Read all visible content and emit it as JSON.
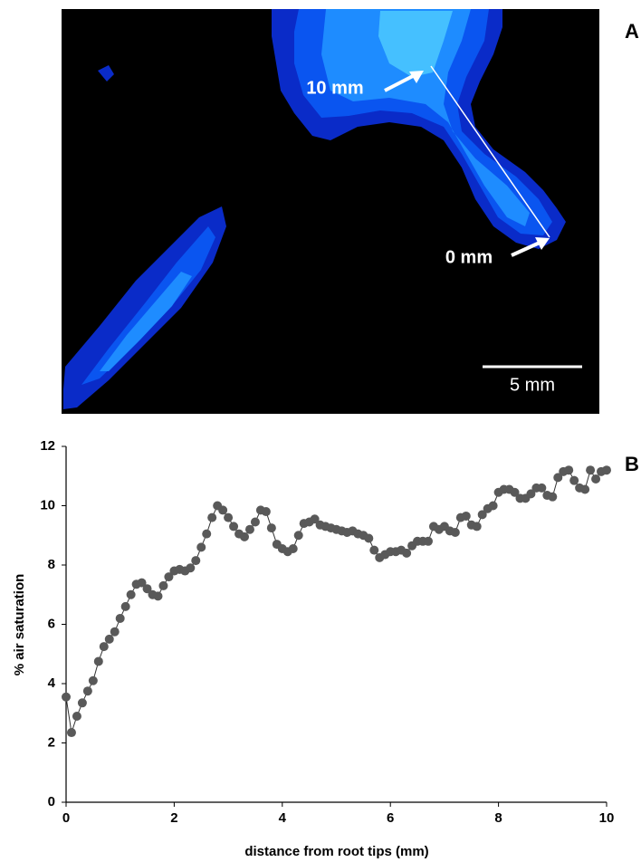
{
  "panel_a": {
    "label": "A",
    "upper_marker": "10 mm",
    "lower_marker": "0 mm",
    "scale_bar": "5 mm"
  },
  "chart_data": {
    "type": "line",
    "panel_label": "B",
    "xlabel": "distance from root tips (mm)",
    "ylabel": "% air saturation",
    "x": [
      0,
      0.1,
      0.2,
      0.3,
      0.4,
      0.5,
      0.6,
      0.7,
      0.8,
      0.9,
      1,
      1.1,
      1.2,
      1.3,
      1.4,
      1.5,
      1.6,
      1.7,
      1.8,
      1.9,
      2,
      2.1,
      2.2,
      2.3,
      2.4,
      2.5,
      2.6,
      2.7,
      2.8,
      2.9,
      3,
      3.1,
      3.2,
      3.3,
      3.4,
      3.5,
      3.6,
      3.7,
      3.8,
      3.9,
      4,
      4.1,
      4.2,
      4.3,
      4.4,
      4.5,
      4.6,
      4.7,
      4.8,
      4.9,
      5,
      5.1,
      5.2,
      5.3,
      5.4,
      5.5,
      5.6,
      5.7,
      5.8,
      5.9,
      6,
      6.1,
      6.2,
      6.3,
      6.4,
      6.5,
      6.6,
      6.7,
      6.8,
      6.9,
      7,
      7.1,
      7.2,
      7.3,
      7.4,
      7.5,
      7.6,
      7.7,
      7.8,
      7.9,
      8,
      8.1,
      8.2,
      8.3,
      8.4,
      8.5,
      8.6,
      8.7,
      8.8,
      8.9,
      9,
      9.1,
      9.2,
      9.3,
      9.4,
      9.5,
      9.6,
      9.7,
      9.8,
      9.9,
      10
    ],
    "values": [
      3.55,
      2.35,
      2.9,
      3.35,
      3.75,
      4.1,
      4.75,
      5.25,
      5.5,
      5.75,
      6.2,
      6.6,
      7.0,
      7.35,
      7.4,
      7.2,
      7.0,
      6.95,
      7.3,
      7.6,
      7.8,
      7.85,
      7.8,
      7.9,
      8.15,
      8.6,
      9.05,
      9.6,
      10.0,
      9.85,
      9.6,
      9.3,
      9.05,
      8.95,
      9.2,
      9.45,
      9.85,
      9.8,
      9.25,
      8.7,
      8.55,
      8.45,
      8.55,
      9.0,
      9.4,
      9.45,
      9.55,
      9.35,
      9.3,
      9.25,
      9.2,
      9.15,
      9.1,
      9.15,
      9.05,
      9.0,
      8.9,
      8.5,
      8.25,
      8.35,
      8.45,
      8.45,
      8.5,
      8.4,
      8.65,
      8.8,
      8.8,
      8.8,
      9.3,
      9.2,
      9.3,
      9.15,
      9.1,
      9.6,
      9.65,
      9.35,
      9.3,
      9.7,
      9.9,
      10.0,
      10.45,
      10.55,
      10.55,
      10.45,
      10.25,
      10.25,
      10.4,
      10.6,
      10.6,
      10.35,
      10.3,
      10.95,
      11.15,
      11.2,
      10.85,
      10.6,
      10.55,
      11.2,
      10.9,
      11.15,
      11.2
    ],
    "color": "#595959",
    "xlim": [
      0,
      10
    ],
    "xticks": [
      0,
      2,
      4,
      6,
      8,
      10
    ],
    "ylim": [
      0,
      12
    ],
    "yticks": [
      0,
      2,
      4,
      6,
      8,
      10,
      12
    ],
    "grid": false
  }
}
